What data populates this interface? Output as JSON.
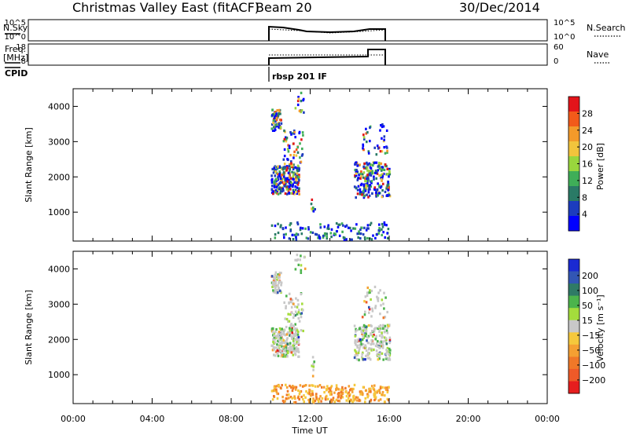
{
  "header": {
    "title": "Christmas Valley East (fitACF)",
    "beam": "Beam 20",
    "date": "30/Dec/2014"
  },
  "top_panels": {
    "nsky_label": "N.Sky",
    "nsky_ticks": [
      "10^5",
      "10^0"
    ],
    "nsearch_label": "N.Search",
    "nsearch_ticks": [
      "10^5",
      "10^0"
    ],
    "freq_label_line1": "Freq.",
    "freq_label_line2": "[MHz]",
    "freq_ticks": [
      "18",
      "8"
    ],
    "nave_label": "Nave",
    "nave_ticks": [
      "60",
      "0"
    ],
    "cpid_label": "CPID",
    "cpid_text": "rbsp 201 IF"
  },
  "chart_data": [
    {
      "type": "heatmap",
      "parameter": "power",
      "ylabel": "Slant Range [km]",
      "xlabel": "",
      "x_ticks": [
        "00:00",
        "04:00",
        "08:00",
        "12:00",
        "16:00",
        "20:00",
        "00:00"
      ],
      "xlim_hours": [
        0,
        24
      ],
      "y_ticks": [
        1000,
        2000,
        3000,
        4000
      ],
      "ylim": [
        180,
        4500
      ],
      "data_window_hours": [
        10,
        16
      ],
      "colorbar": {
        "label": "Power [dB]",
        "ticks": [
          4,
          8,
          12,
          16,
          20,
          24,
          28
        ],
        "range": [
          0,
          32
        ],
        "colors": [
          "#0000ff",
          "#1c3cbe",
          "#2a7a66",
          "#3fae58",
          "#99d63d",
          "#f2c43c",
          "#f39a2a",
          "#f25a1a",
          "#e3141a"
        ]
      }
    },
    {
      "type": "heatmap",
      "parameter": "velocity",
      "ylabel": "Slant Range [km]",
      "xlabel": "Time UT",
      "x_ticks": [
        "00:00",
        "04:00",
        "08:00",
        "12:00",
        "16:00",
        "20:00",
        "00:00"
      ],
      "xlim_hours": [
        0,
        24
      ],
      "y_ticks": [
        1000,
        2000,
        3000,
        4000
      ],
      "ylim": [
        180,
        4500
      ],
      "data_window_hours": [
        10,
        16
      ],
      "colorbar": {
        "label": "Velocity [m s⁻¹]",
        "ticks": [
          "200",
          "100",
          "50",
          "15",
          "−15",
          "−50",
          "−100",
          "−200"
        ],
        "colors": [
          "#1a2ad2",
          "#3256b4",
          "#2f7a66",
          "#4cb44c",
          "#a4dc3c",
          "#c8c8c8",
          "#f5c83c",
          "#f5a032",
          "#f07828",
          "#ee5a28",
          "#e61e1e"
        ]
      }
    }
  ]
}
